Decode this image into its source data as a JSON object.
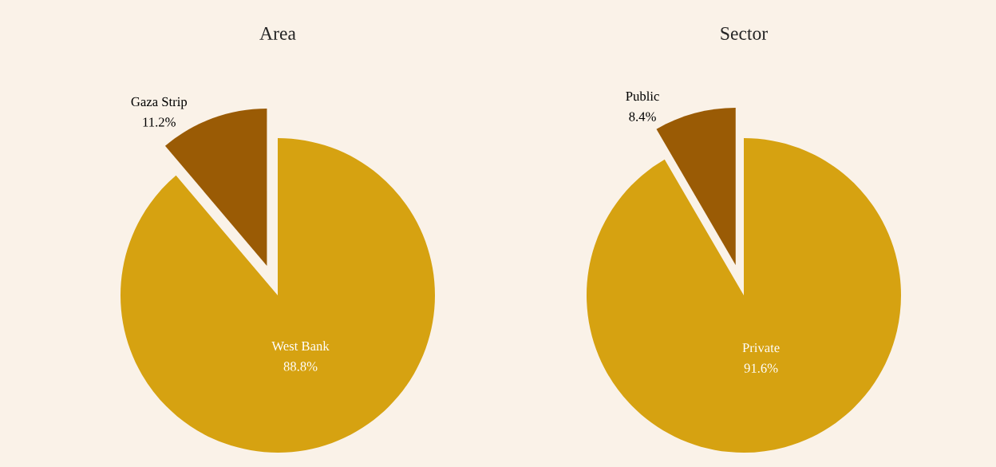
{
  "chart_data": [
    {
      "type": "pie",
      "title": "Area",
      "categories": [
        "West Bank",
        "Gaza Strip"
      ],
      "values": [
        88.8,
        11.2
      ],
      "colors": [
        "#d6a211",
        "#9a5b05"
      ],
      "value_labels": [
        "88.8%",
        "11.2%"
      ]
    },
    {
      "type": "pie",
      "title": "Sector",
      "categories": [
        "Private",
        "Public"
      ],
      "values": [
        91.6,
        8.4
      ],
      "colors": [
        "#d6a211",
        "#9a5b05"
      ],
      "value_labels": [
        "91.6%",
        "8.4%"
      ]
    }
  ]
}
